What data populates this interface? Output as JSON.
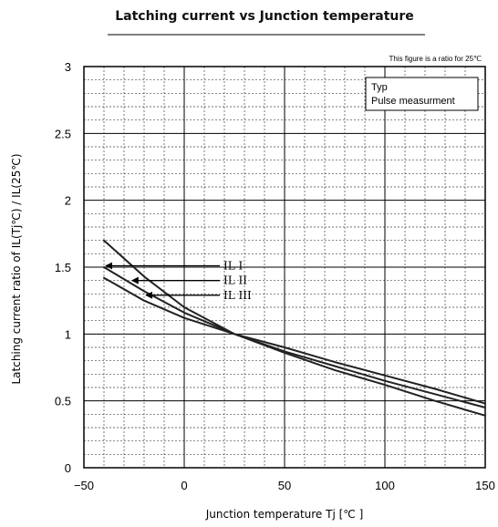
{
  "chart_data": {
    "type": "line",
    "title": "Latching current  vs  Junction temperature",
    "note": "This figure is a ratio for 25℃",
    "xlabel": "Junction temperature   Tj [℃ ]",
    "ylabel": "Latching current ratio of IL(Tj℃) / IL(25℃)",
    "xlim": [
      -50,
      150
    ],
    "ylim": [
      0,
      3
    ],
    "x_ticks": [
      "−50",
      "0",
      "50",
      "100",
      "150"
    ],
    "y_ticks": [
      "0",
      "0.5",
      "1",
      "1.5",
      "2",
      "2.5",
      "3"
    ],
    "grid": true,
    "legend": {
      "position": "top-right",
      "lines": [
        "Typ",
        "Pulse measurment"
      ]
    },
    "series": [
      {
        "name": "IL I",
        "x": [
          -40,
          -20,
          0,
          25,
          50,
          75,
          100,
          125,
          150
        ],
        "y": [
          1.7,
          1.43,
          1.2,
          1.0,
          0.87,
          0.76,
          0.65,
          0.55,
          0.45
        ]
      },
      {
        "name": "IL II",
        "x": [
          -40,
          -20,
          0,
          25,
          50,
          75,
          100,
          125,
          150
        ],
        "y": [
          1.5,
          1.32,
          1.16,
          1.0,
          0.86,
          0.73,
          0.62,
          0.5,
          0.39
        ]
      },
      {
        "name": "IL III",
        "x": [
          -40,
          -20,
          0,
          25,
          50,
          75,
          100,
          125,
          150
        ],
        "y": [
          1.42,
          1.25,
          1.12,
          1.0,
          0.9,
          0.79,
          0.69,
          0.59,
          0.48
        ]
      }
    ],
    "annotations": [
      {
        "label": "IL I",
        "x": -40,
        "y": 1.51
      },
      {
        "label": "IL II",
        "x": -27,
        "y": 1.4
      },
      {
        "label": "IL III",
        "x": -20,
        "y": 1.29
      }
    ]
  }
}
